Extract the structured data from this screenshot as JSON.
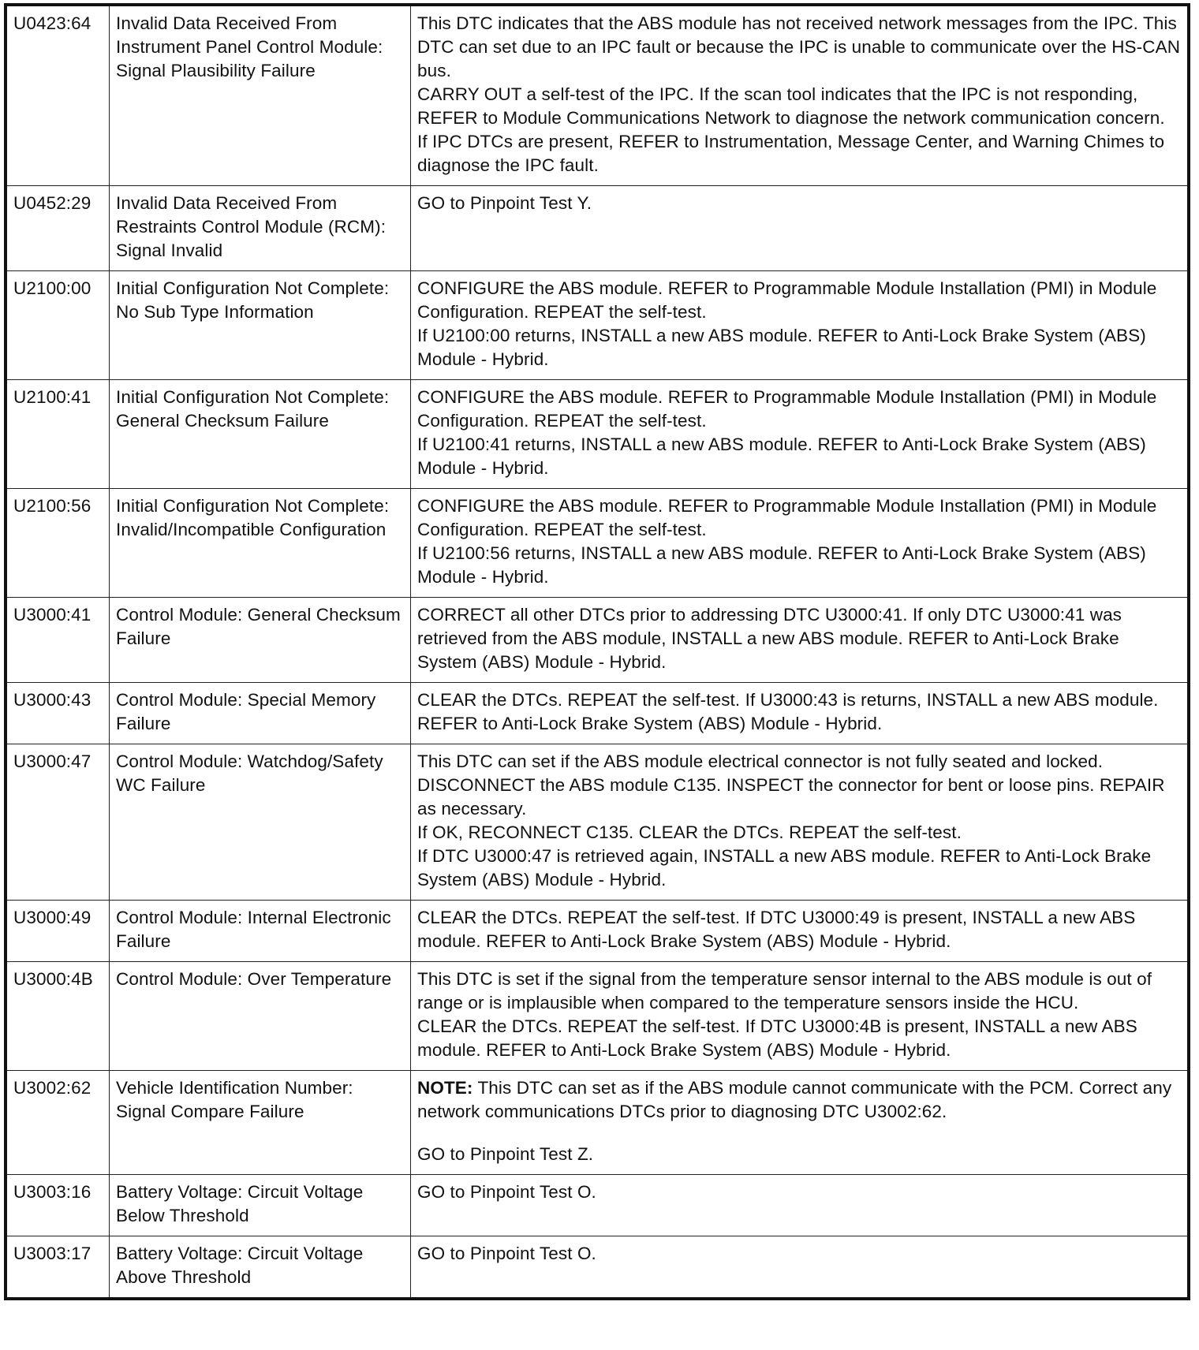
{
  "rows": [
    {
      "code": "U0423:64",
      "description": "Invalid Data Received From Instrument Panel Control Module: Signal Plausibility Failure",
      "action": [
        {
          "text": "This DTC indicates that the ABS module has not received network messages from the IPC. This DTC can set due to an IPC fault or because the IPC is unable to communicate over the HS-CAN bus."
        },
        {
          "text": "CARRY OUT a self-test of the IPC. If the scan tool indicates that the IPC is not responding, REFER to Module Communications Network to diagnose the network communication concern."
        },
        {
          "text": "If IPC DTCs are present, REFER to Instrumentation, Message Center, and Warning Chimes to diagnose the IPC fault."
        }
      ]
    },
    {
      "code": "U0452:29",
      "description": "Invalid Data Received From Restraints Control Module (RCM): Signal Invalid",
      "action": [
        {
          "text": "GO to Pinpoint Test Y."
        }
      ]
    },
    {
      "code": "U2100:00",
      "description": "Initial Configuration Not Complete: No Sub Type Information",
      "action": [
        {
          "text": "CONFIGURE the ABS module. REFER to Programmable Module Installation (PMI) in Module Configuration. REPEAT the self-test."
        },
        {
          "text": "If U2100:00 returns, INSTALL a new ABS module. REFER to Anti-Lock Brake System (ABS) Module - Hybrid."
        }
      ]
    },
    {
      "code": "U2100:41",
      "description": "Initial Configuration Not Complete: General Checksum Failure",
      "action": [
        {
          "text": "CONFIGURE the ABS module. REFER to Programmable Module Installation (PMI) in Module Configuration. REPEAT the self-test."
        },
        {
          "text": "If U2100:41 returns, INSTALL a new ABS module. REFER to Anti-Lock Brake System (ABS) Module - Hybrid."
        }
      ]
    },
    {
      "code": "U2100:56",
      "description": "Initial Configuration Not Complete: Invalid/Incompatible Configuration",
      "action": [
        {
          "text": "CONFIGURE the ABS module. REFER to Programmable Module Installation (PMI) in Module Configuration. REPEAT the self-test."
        },
        {
          "text": "If U2100:56 returns, INSTALL a new ABS module. REFER to Anti-Lock Brake System (ABS) Module - Hybrid."
        }
      ]
    },
    {
      "code": "U3000:41",
      "description": "Control Module: General Checksum Failure",
      "action": [
        {
          "text": "CORRECT all other DTCs prior to addressing DTC U3000:41. If only DTC U3000:41 was retrieved from the ABS module, INSTALL a new ABS module. REFER to Anti-Lock Brake System (ABS) Module - Hybrid."
        }
      ]
    },
    {
      "code": "U3000:43",
      "description": "Control Module: Special Memory Failure",
      "action": [
        {
          "text": "CLEAR the DTCs. REPEAT the self-test. If U3000:43 is returns, INSTALL a new ABS module. REFER to Anti-Lock Brake System (ABS) Module - Hybrid."
        }
      ]
    },
    {
      "code": "U3000:47",
      "description": "Control Module: Watchdog/Safety WC Failure",
      "action": [
        {
          "text": "This DTC can set if the ABS module electrical connector is not fully seated and locked."
        },
        {
          "text": "DISCONNECT the ABS module C135. INSPECT the connector for bent or loose pins. REPAIR as necessary."
        },
        {
          "text": "If OK, RECONNECT C135. CLEAR the DTCs. REPEAT the self-test."
        },
        {
          "text": "If DTC U3000:47 is retrieved again, INSTALL a new ABS module. REFER to Anti-Lock Brake System (ABS) Module - Hybrid."
        }
      ]
    },
    {
      "code": "U3000:49",
      "description": "Control Module: Internal Electronic Failure",
      "action": [
        {
          "text": "CLEAR the DTCs. REPEAT the self-test. If DTC U3000:49 is present, INSTALL a new ABS module. REFER to Anti-Lock Brake System (ABS) Module - Hybrid."
        }
      ]
    },
    {
      "code": "U3000:4B",
      "description": "Control Module: Over Temperature",
      "action": [
        {
          "text": "This DTC is set if the signal from the temperature sensor internal to the ABS module is out of range or is implausible when compared to the temperature sensors inside the HCU."
        },
        {
          "text": "CLEAR the DTCs. REPEAT the self-test. If DTC U3000:4B is present, INSTALL a new ABS module. REFER to Anti-Lock Brake System (ABS) Module - Hybrid."
        }
      ]
    },
    {
      "code": "U3002:62",
      "description": "Vehicle Identification Number: Signal Compare Failure",
      "action": [
        {
          "label": "NOTE:",
          "text": " This DTC can set as if the ABS module cannot communicate with the PCM. Correct any network communications DTCs prior to diagnosing DTC U3002:62."
        },
        {
          "text": ""
        },
        {
          "text": "GO to Pinpoint Test Z."
        }
      ]
    },
    {
      "code": "U3003:16",
      "description": "Battery Voltage: Circuit Voltage Below Threshold",
      "action": [
        {
          "text": "GO to Pinpoint Test O."
        }
      ]
    },
    {
      "code": "U3003:17",
      "description": "Battery Voltage: Circuit Voltage Above Threshold",
      "action": [
        {
          "text": "GO to Pinpoint Test O."
        }
      ]
    }
  ]
}
